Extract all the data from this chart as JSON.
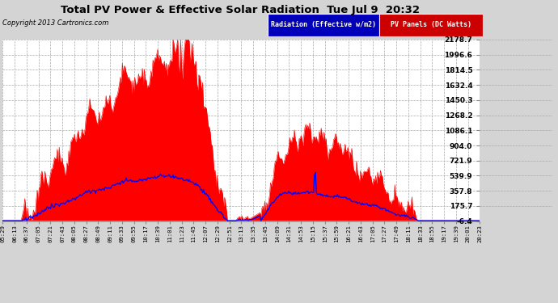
{
  "title": "Total PV Power & Effective Solar Radiation  Tue Jul 9  20:32",
  "copyright": "Copyright 2013 Cartronics.com",
  "legend_radiation": "Radiation (Effective w/m2)",
  "legend_pv": "PV Panels (DC Watts)",
  "ylabel_right_values": [
    2178.7,
    1996.6,
    1814.5,
    1632.4,
    1450.3,
    1268.2,
    1086.1,
    904.0,
    721.9,
    539.9,
    357.8,
    175.7,
    -6.4
  ],
  "ymin": -6.4,
  "ymax": 2178.7,
  "plot_bg_color": "#ffffff",
  "radiation_color": "#0000ff",
  "pv_color": "#ff0000",
  "pv_fill_color": "#ff0000",
  "fig_bg_color": "#d4d4d4",
  "grid_color": "#aaaaaa",
  "x_labels": [
    "05:29",
    "06:13",
    "06:37",
    "07:05",
    "07:21",
    "07:43",
    "08:05",
    "08:27",
    "08:49",
    "09:11",
    "09:33",
    "09:55",
    "10:17",
    "10:39",
    "11:01",
    "11:23",
    "11:45",
    "12:07",
    "12:29",
    "12:51",
    "13:13",
    "13:35",
    "13:45",
    "14:09",
    "14:31",
    "14:53",
    "15:15",
    "15:37",
    "15:59",
    "16:21",
    "16:43",
    "17:05",
    "17:27",
    "17:49",
    "18:11",
    "18:33",
    "18:55",
    "19:17",
    "19:39",
    "20:01",
    "20:23"
  ]
}
